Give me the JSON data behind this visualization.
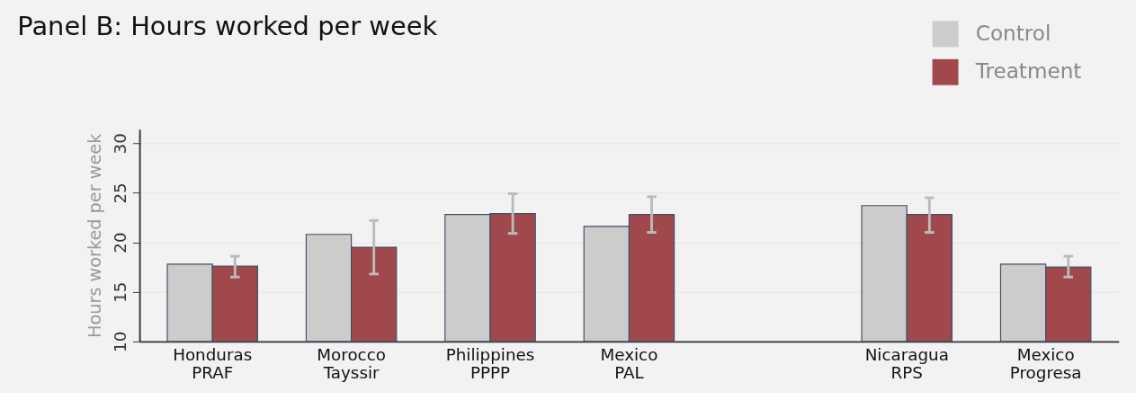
{
  "chart_data": {
    "type": "bar",
    "title": "Panel B: Hours worked per week",
    "ylabel": "Hours worked per week",
    "categories": [
      "Honduras PRAF",
      "Morocco Tayssir",
      "Philippines PPPP",
      "Mexico PAL",
      null,
      "Nicaragua RPS",
      "Mexico Progresa"
    ],
    "series": [
      {
        "name": "Control",
        "color": "#cccccc",
        "values": [
          17.8,
          20.8,
          22.8,
          21.6,
          null,
          23.7,
          17.8
        ]
      },
      {
        "name": "Treatment",
        "color": "#a0484c",
        "values": [
          17.6,
          19.5,
          22.9,
          22.8,
          null,
          22.8,
          17.5
        ],
        "errors": [
          [
            16.5,
            18.6
          ],
          [
            16.8,
            22.2
          ],
          [
            20.9,
            24.9
          ],
          [
            21.0,
            24.6
          ],
          null,
          [
            21.0,
            24.5
          ],
          [
            16.5,
            18.6
          ]
        ]
      }
    ],
    "ylim": [
      10,
      31.4
    ],
    "yticks": [
      10,
      15,
      20,
      25,
      30
    ],
    "grid": "y",
    "legend": "top right"
  }
}
